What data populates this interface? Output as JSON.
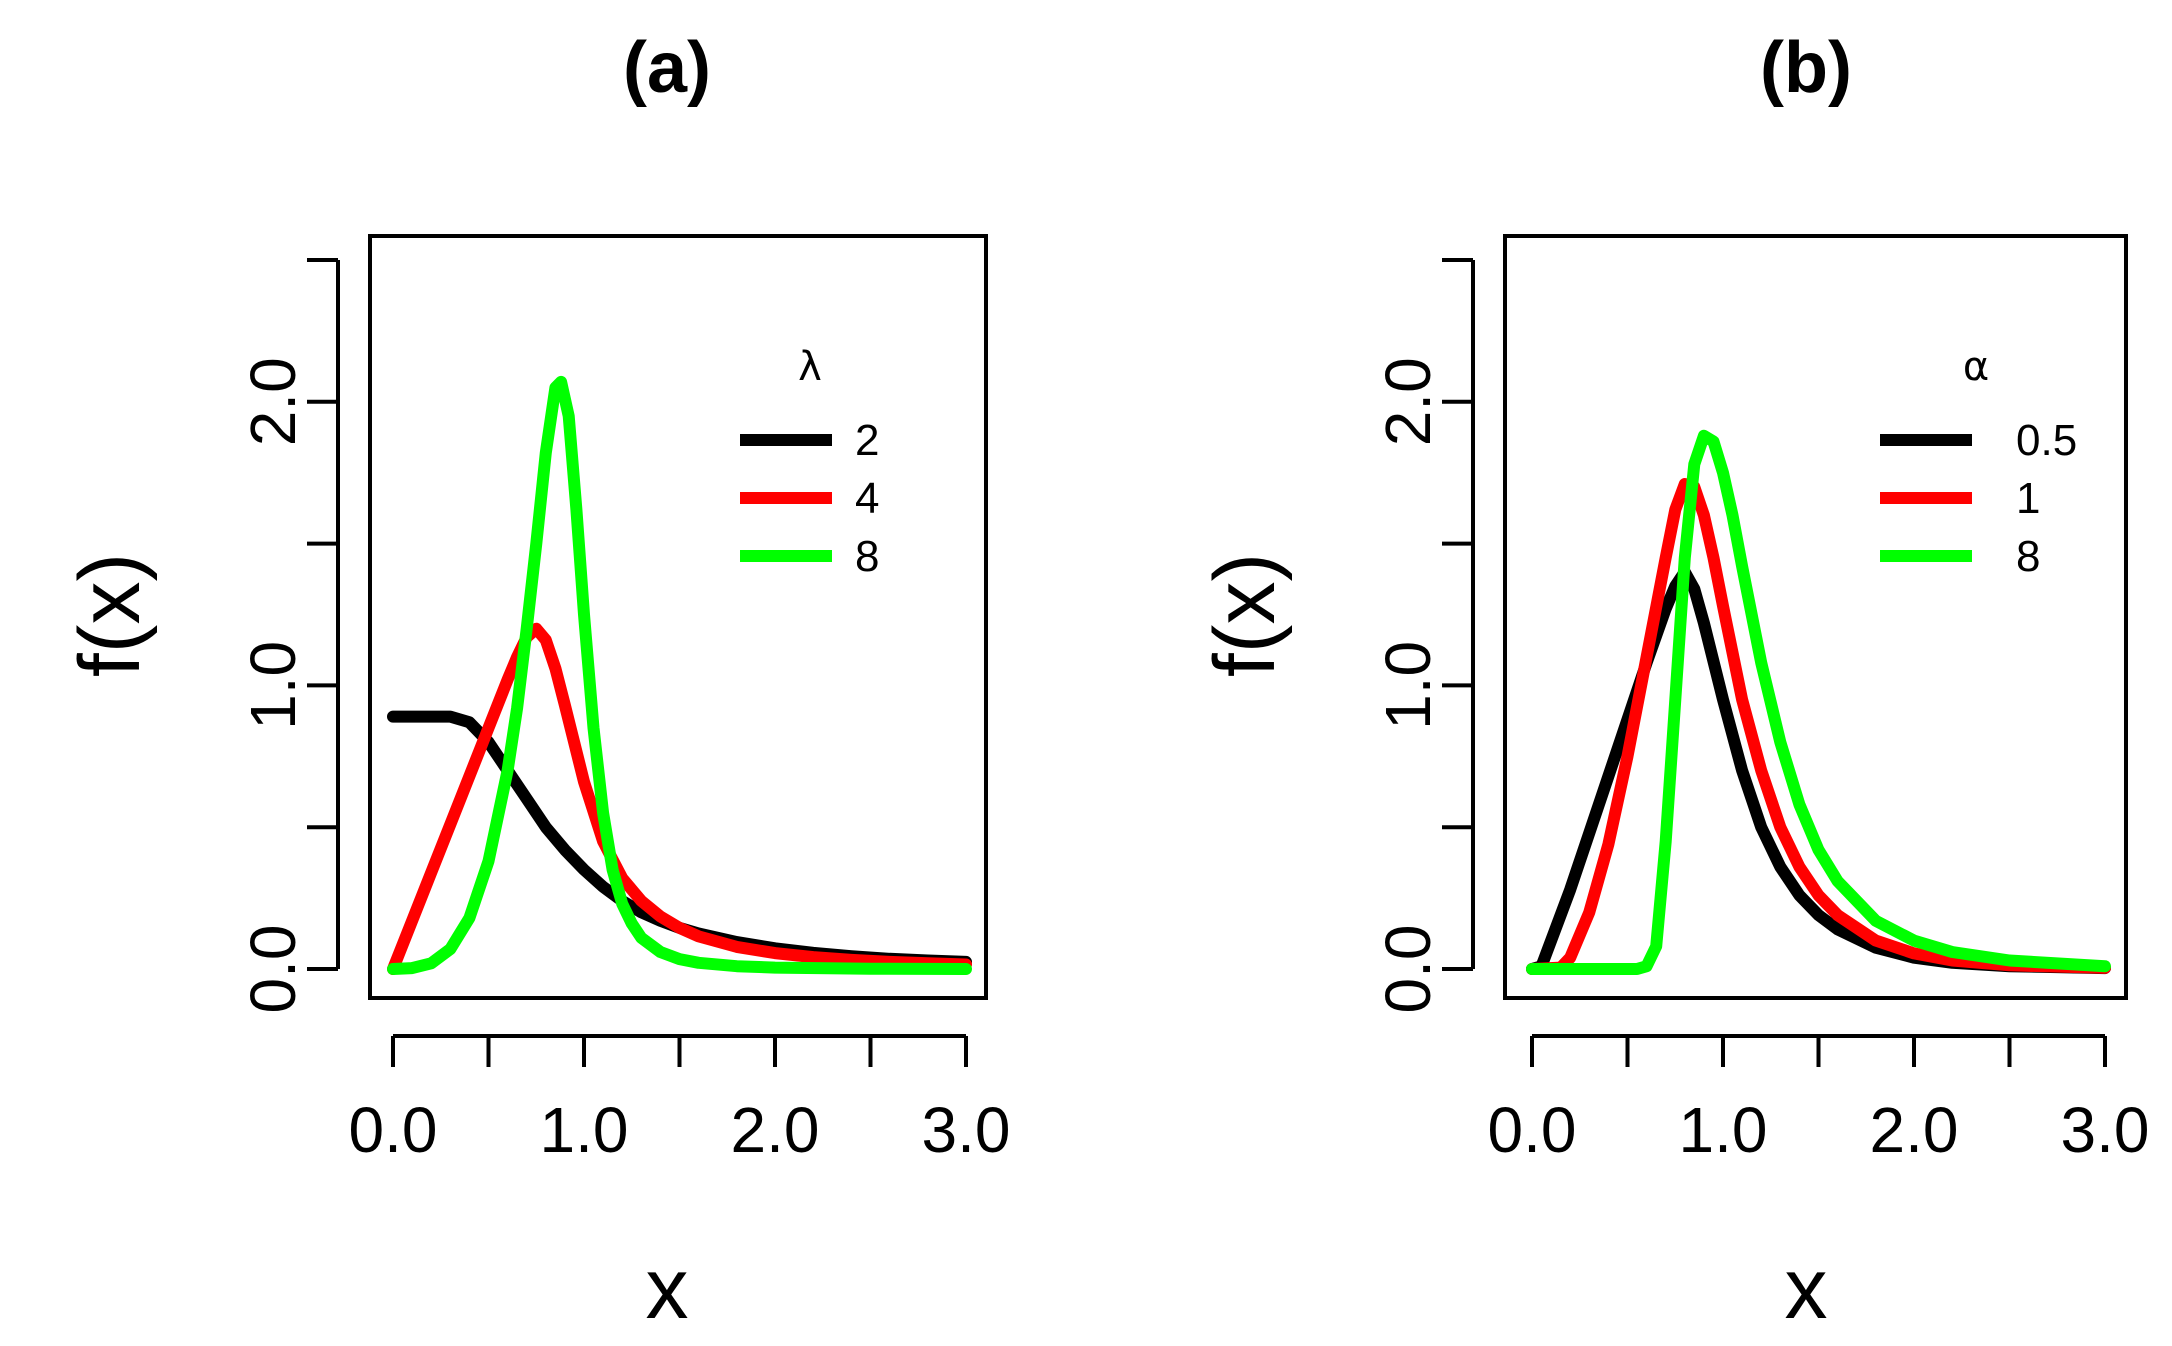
{
  "chart_data": [
    {
      "type": "line",
      "title": "(a)",
      "xlabel": "x",
      "ylabel": "f(x)",
      "xlim": [
        0,
        3
      ],
      "ylim": [
        0,
        2.5
      ],
      "x_ticks": [
        0,
        0.5,
        1,
        1.5,
        2,
        2.5,
        3
      ],
      "x_tick_labels": [
        "0.0",
        "",
        "1.0",
        "",
        "2.0",
        "",
        "3.0"
      ],
      "y_ticks": [
        0,
        0.5,
        1,
        1.5,
        2,
        2.5
      ],
      "y_tick_labels": [
        "0.0",
        "",
        "1.0",
        "",
        "2.0",
        ""
      ],
      "legend_title": "λ",
      "legend_position": "top-right",
      "series": [
        {
          "name": "2",
          "color": "#000000",
          "x": [
            0,
            0.1,
            0.2,
            0.3,
            0.4,
            0.5,
            0.6,
            0.7,
            0.8,
            0.9,
            1.0,
            1.1,
            1.2,
            1.3,
            1.4,
            1.5,
            1.6,
            1.8,
            2.0,
            2.2,
            2.4,
            2.6,
            2.8,
            3.0
          ],
          "y": [
            0.89,
            0.89,
            0.89,
            0.89,
            0.87,
            0.8,
            0.7,
            0.6,
            0.5,
            0.42,
            0.35,
            0.29,
            0.24,
            0.2,
            0.17,
            0.145,
            0.125,
            0.095,
            0.073,
            0.057,
            0.045,
            0.036,
            0.03,
            0.025
          ]
        },
        {
          "name": "4",
          "color": "#ff0000",
          "x": [
            0,
            0.1,
            0.2,
            0.3,
            0.4,
            0.5,
            0.6,
            0.65,
            0.7,
            0.75,
            0.8,
            0.85,
            0.9,
            1.0,
            1.1,
            1.2,
            1.3,
            1.4,
            1.5,
            1.6,
            1.8,
            2.0,
            2.2,
            2.4,
            2.6,
            2.8,
            3.0
          ],
          "y": [
            0,
            0.17,
            0.34,
            0.51,
            0.68,
            0.85,
            1.02,
            1.1,
            1.17,
            1.2,
            1.16,
            1.06,
            0.93,
            0.66,
            0.45,
            0.32,
            0.24,
            0.185,
            0.145,
            0.115,
            0.078,
            0.056,
            0.042,
            0.032,
            0.025,
            0.02,
            0.016
          ]
        },
        {
          "name": "8",
          "color": "#00ff00",
          "x": [
            0,
            0.1,
            0.2,
            0.3,
            0.4,
            0.5,
            0.6,
            0.65,
            0.7,
            0.75,
            0.8,
            0.85,
            0.88,
            0.92,
            0.96,
            1.0,
            1.05,
            1.1,
            1.15,
            1.2,
            1.25,
            1.3,
            1.4,
            1.5,
            1.6,
            1.8,
            2.0,
            2.5,
            3.0
          ],
          "y": [
            0,
            0.003,
            0.02,
            0.07,
            0.18,
            0.38,
            0.7,
            0.92,
            1.2,
            1.5,
            1.82,
            2.05,
            2.07,
            1.95,
            1.62,
            1.25,
            0.85,
            0.55,
            0.35,
            0.23,
            0.16,
            0.11,
            0.06,
            0.035,
            0.022,
            0.01,
            0.005,
            0.001,
            0
          ]
        }
      ]
    },
    {
      "type": "line",
      "title": "(b)",
      "xlabel": "x",
      "ylabel": "f(x)",
      "xlim": [
        0,
        3
      ],
      "ylim": [
        0,
        2.5
      ],
      "x_ticks": [
        0,
        0.5,
        1,
        1.5,
        2,
        2.5,
        3
      ],
      "x_tick_labels": [
        "0.0",
        "",
        "1.0",
        "",
        "2.0",
        "",
        "3.0"
      ],
      "y_ticks": [
        0,
        0.5,
        1,
        1.5,
        2,
        2.5
      ],
      "y_tick_labels": [
        "0.0",
        "",
        "1.0",
        "",
        "2.0",
        ""
      ],
      "legend_title": "α",
      "legend_position": "top-right",
      "series": [
        {
          "name": "0.5",
          "color": "#000000",
          "x": [
            0,
            0.05,
            0.1,
            0.2,
            0.3,
            0.4,
            0.5,
            0.6,
            0.7,
            0.75,
            0.8,
            0.85,
            0.9,
            1.0,
            1.1,
            1.2,
            1.3,
            1.4,
            1.5,
            1.6,
            1.8,
            2.0,
            2.2,
            2.5,
            3.0
          ],
          "y": [
            0,
            0.01,
            0.1,
            0.28,
            0.48,
            0.68,
            0.88,
            1.08,
            1.27,
            1.35,
            1.4,
            1.34,
            1.22,
            0.95,
            0.7,
            0.5,
            0.36,
            0.26,
            0.19,
            0.14,
            0.075,
            0.04,
            0.022,
            0.01,
            0.003
          ]
        },
        {
          "name": "1",
          "color": "#ff0000",
          "x": [
            0,
            0.15,
            0.2,
            0.3,
            0.4,
            0.5,
            0.6,
            0.7,
            0.75,
            0.8,
            0.85,
            0.9,
            0.95,
            1.0,
            1.1,
            1.2,
            1.3,
            1.4,
            1.5,
            1.6,
            1.8,
            2.0,
            2.2,
            2.5,
            3.0
          ],
          "y": [
            0,
            0.005,
            0.04,
            0.2,
            0.44,
            0.75,
            1.1,
            1.45,
            1.62,
            1.71,
            1.7,
            1.6,
            1.45,
            1.28,
            0.95,
            0.7,
            0.5,
            0.36,
            0.26,
            0.19,
            0.1,
            0.055,
            0.03,
            0.013,
            0.004
          ]
        },
        {
          "name": "8",
          "color": "#00ff00",
          "x": [
            0,
            0.55,
            0.6,
            0.65,
            0.7,
            0.75,
            0.8,
            0.85,
            0.9,
            0.95,
            1.0,
            1.05,
            1.1,
            1.2,
            1.3,
            1.4,
            1.5,
            1.6,
            1.8,
            2.0,
            2.2,
            2.5,
            3.0
          ],
          "y": [
            0,
            0,
            0.01,
            0.08,
            0.45,
            0.95,
            1.45,
            1.78,
            1.88,
            1.86,
            1.75,
            1.6,
            1.42,
            1.08,
            0.8,
            0.58,
            0.42,
            0.31,
            0.17,
            0.1,
            0.06,
            0.03,
            0.01
          ]
        }
      ]
    }
  ]
}
